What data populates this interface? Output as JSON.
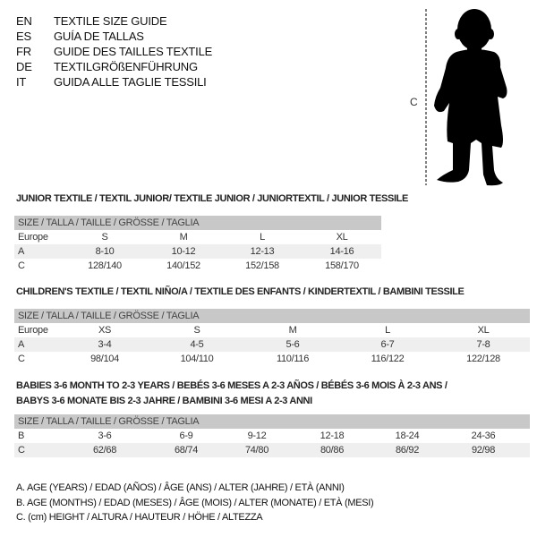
{
  "languages": [
    {
      "code": "EN",
      "title": "TEXTILE SIZE GUIDE"
    },
    {
      "code": "ES",
      "title": "GUÍA DE TALLAS"
    },
    {
      "code": "FR",
      "title": "GUIDE DES TAILLES TEXTILE"
    },
    {
      "code": "DE",
      "title": "TEXTILGRÖßENFÜHRUNG"
    },
    {
      "code": "IT",
      "title": "GUIDA ALLE TAGLIE TESSILI"
    }
  ],
  "figure": {
    "measure_label": "C"
  },
  "size_header": "SIZE / TALLA / TAILLE / GRÖSSE / TAGLIA",
  "junior": {
    "title": "JUNIOR TEXTILE / TEXTIL JUNIOR/ TEXTILE JUNIOR / JUNIORTEXTIL / JUNIOR TESSILE",
    "rows": [
      {
        "label": "Europe",
        "values": [
          "S",
          "M",
          "L",
          "XL"
        ]
      },
      {
        "label": "A",
        "values": [
          "8-10",
          "10-12",
          "12-13",
          "14-16"
        ]
      },
      {
        "label": "C",
        "values": [
          "128/140",
          "140/152",
          "152/158",
          "158/170"
        ]
      }
    ]
  },
  "children": {
    "title": "CHILDREN'S TEXTILE / TEXTIL NIÑO/A / TEXTILE DES ENFANTS / KINDERTEXTIL / BAMBINI TESSILE",
    "rows": [
      {
        "label": "Europe",
        "values": [
          "XS",
          "S",
          "M",
          "L",
          "XL"
        ]
      },
      {
        "label": "A",
        "values": [
          "3-4",
          "4-5",
          "5-6",
          "6-7",
          "7-8"
        ]
      },
      {
        "label": "C",
        "values": [
          "98/104",
          "104/110",
          "110/116",
          "116/122",
          "122/128"
        ]
      }
    ]
  },
  "babies": {
    "title_line1": "BABIES 3-6 MONTH TO 2-3 YEARS / BEBÉS 3-6 MESES A 2-3 AÑOS / BÉBÉS 3-6 MOIS À 2-3 ANS /",
    "title_line2": "BABYS 3-6 MONATE BIS 2-3 JAHRE / BAMBINI 3-6 MESI A 2-3 ANNI",
    "rows": [
      {
        "label": "B",
        "values": [
          "3-6",
          "6-9",
          "9-12",
          "12-18",
          "18-24",
          "24-36"
        ]
      },
      {
        "label": "C",
        "values": [
          "62/68",
          "68/74",
          "74/80",
          "80/86",
          "86/92",
          "92/98"
        ]
      }
    ]
  },
  "legend": [
    "A. AGE (YEARS) / EDAD (AÑOS) / ÂGE (ANS) / ALTER (JAHRE) / ETÀ (ANNI)",
    "B. AGE (MONTHS) / EDAD (MESES) / ÂGE (MOIS) / ALTER (MONATE) / ETÀ (MESI)",
    "C. (cm) HEIGHT / ALTURA / HAUTEUR / HÖHE / ALTEZZA"
  ]
}
